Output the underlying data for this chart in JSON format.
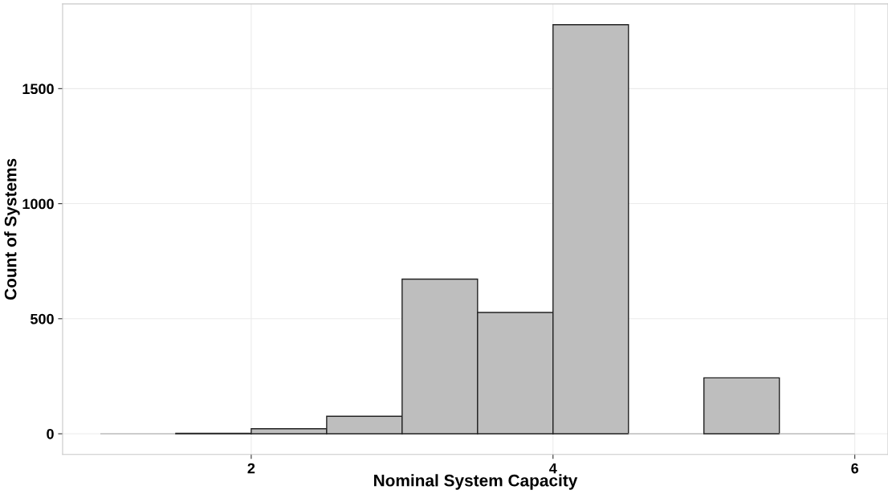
{
  "chart_data": {
    "type": "histogram",
    "xlabel": "Nominal System Capacity",
    "ylabel": "Count of Systems",
    "bins": [
      1,
      1.5,
      2,
      2.5,
      3,
      3.5,
      4,
      4.5,
      5,
      5.5,
      6
    ],
    "values": [
      0,
      2,
      22,
      76,
      672,
      527,
      1778,
      0,
      243,
      0
    ],
    "color": "#bebebe",
    "xlim": [
      0.75,
      6.22
    ],
    "ylim": [
      -90,
      1868
    ],
    "xticks": [
      2,
      4,
      6
    ],
    "yticks": [
      0,
      500,
      1000,
      1500
    ],
    "grid": true
  }
}
